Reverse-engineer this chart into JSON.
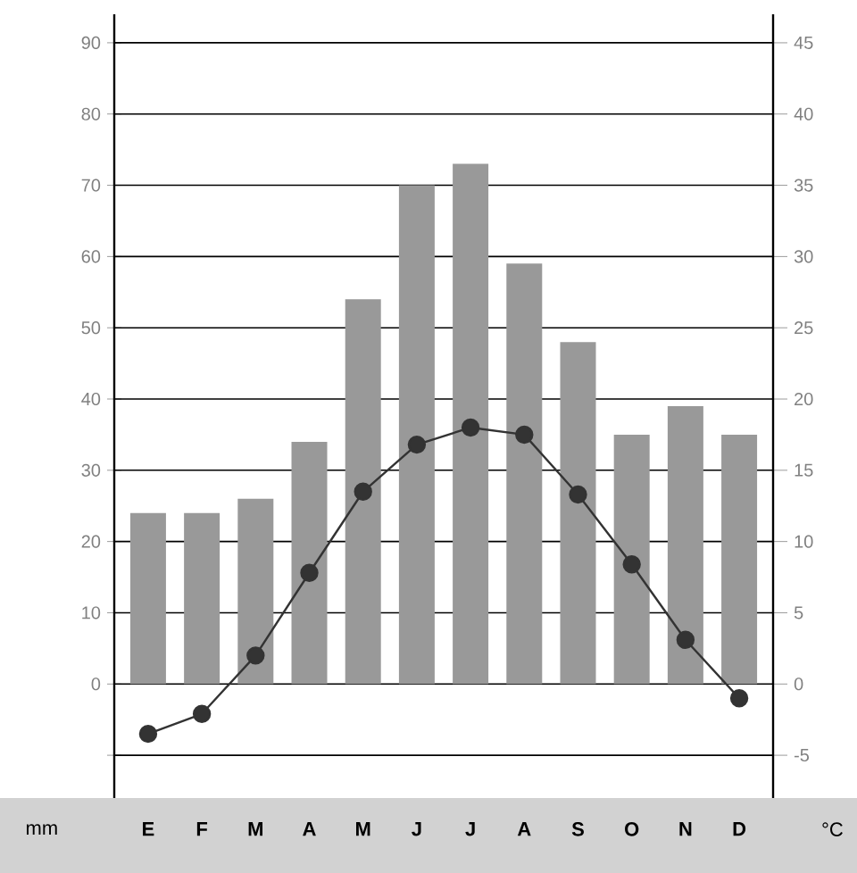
{
  "chart_data": {
    "type": "bar",
    "categories": [
      "E",
      "F",
      "M",
      "A",
      "M",
      "J",
      "J",
      "A",
      "S",
      "O",
      "N",
      "D"
    ],
    "series": [
      {
        "color": "#999999",
        "values": [
          24,
          24,
          26,
          34,
          54,
          70,
          73,
          59,
          48,
          35,
          39,
          35
        ]
      },
      {
        "type": "line",
        "axis": "y2",
        "color": "#333333",
        "marker": "circle",
        "line_style": "solid",
        "values": [
          -3.5,
          -2.1,
          2.0,
          7.8,
          13.5,
          16.8,
          18.0,
          17.5,
          13.3,
          8.4,
          3.1,
          -1.0
        ]
      }
    ],
    "ylabel": "mm",
    "y2label": "°C",
    "ylim": [
      -16,
      94
    ],
    "yticks": [
      {
        "value": -10,
        "label": null
      },
      0,
      10,
      20,
      30,
      40,
      50,
      60,
      70,
      80,
      90
    ],
    "y2lim": [
      -8,
      47
    ],
    "y2ticks": [
      -5,
      0,
      5,
      10,
      15,
      20,
      25,
      30,
      35,
      40,
      45
    ],
    "grid": "y"
  }
}
